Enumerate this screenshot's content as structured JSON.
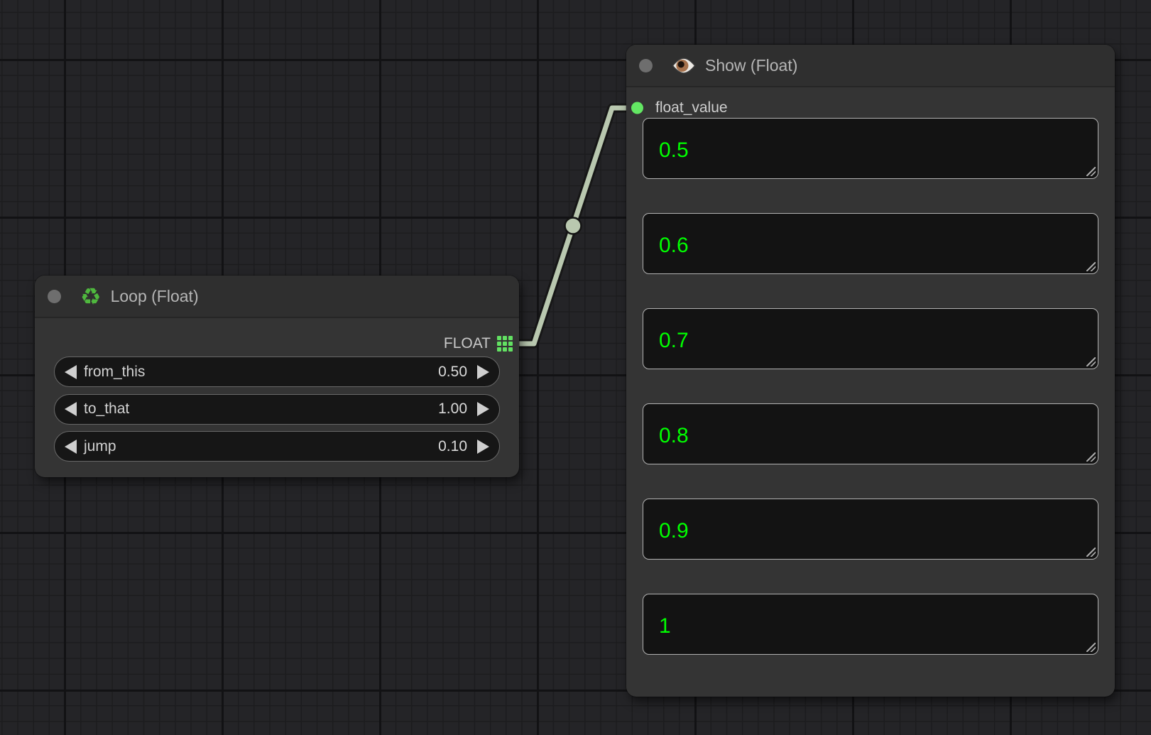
{
  "loop_node": {
    "title": "Loop (Float)",
    "icon_char": "♻",
    "output": {
      "label": "FLOAT"
    },
    "widgets": [
      {
        "label": "from_this",
        "value": "0.50"
      },
      {
        "label": "to_that",
        "value": "1.00"
      },
      {
        "label": "jump",
        "value": "0.10"
      }
    ]
  },
  "show_node": {
    "title": "Show (Float)",
    "input": {
      "label": "float_value"
    },
    "values": [
      "0.5",
      "0.6",
      "0.7",
      "0.8",
      "0.9",
      "1"
    ]
  },
  "colors": {
    "value_text": "#00ff00",
    "socket_green": "#63e763",
    "list_icon_green": "#62e162",
    "link": "#b9c8af",
    "link_shadow": "#141414",
    "recycle_icon_green": "#4fb83e"
  }
}
